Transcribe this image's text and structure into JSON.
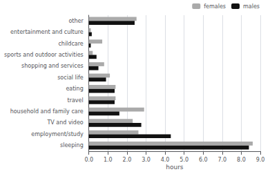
{
  "chart_data": {
    "type": "bar",
    "orientation": "horizontal",
    "categories": [
      "sleeping",
      "employment/study",
      "TV and video",
      "household and family care",
      "travel",
      "eating",
      "social life",
      "shopping and services",
      "sports and outdoor activities",
      "childcare",
      "entertainment and culture",
      "other"
    ],
    "series": [
      {
        "name": "females",
        "color": "#aaaaaa",
        "values": [
          8.6,
          2.6,
          2.3,
          2.9,
          1.4,
          1.4,
          1.1,
          0.8,
          0.2,
          0.7,
          0.1,
          2.5
        ]
      },
      {
        "name": "males",
        "color": "#111111",
        "values": [
          8.4,
          4.3,
          2.75,
          1.6,
          1.35,
          1.35,
          0.9,
          0.5,
          0.4,
          0.1,
          0.15,
          2.4
        ]
      }
    ],
    "xlabel": "hours",
    "xlim": [
      0,
      9.0
    ],
    "xticks": [
      {
        "value": 0.0,
        "label": "0.0"
      },
      {
        "value": 1.0,
        "label": "1.0"
      },
      {
        "value": 2.0,
        "label": "2.0"
      },
      {
        "value": 3.0,
        "label": "3.0"
      },
      {
        "value": 4.0,
        "label": "4.0"
      },
      {
        "value": 5.0,
        "label": "5.0"
      },
      {
        "value": 6.0,
        "label": "6.0"
      },
      {
        "value": 7.0,
        "label": "7.0"
      },
      {
        "value": 8.0,
        "label": "8.0"
      },
      {
        "value": 9.0,
        "label": "9.0"
      }
    ],
    "grid": true,
    "legend": "upper right"
  }
}
